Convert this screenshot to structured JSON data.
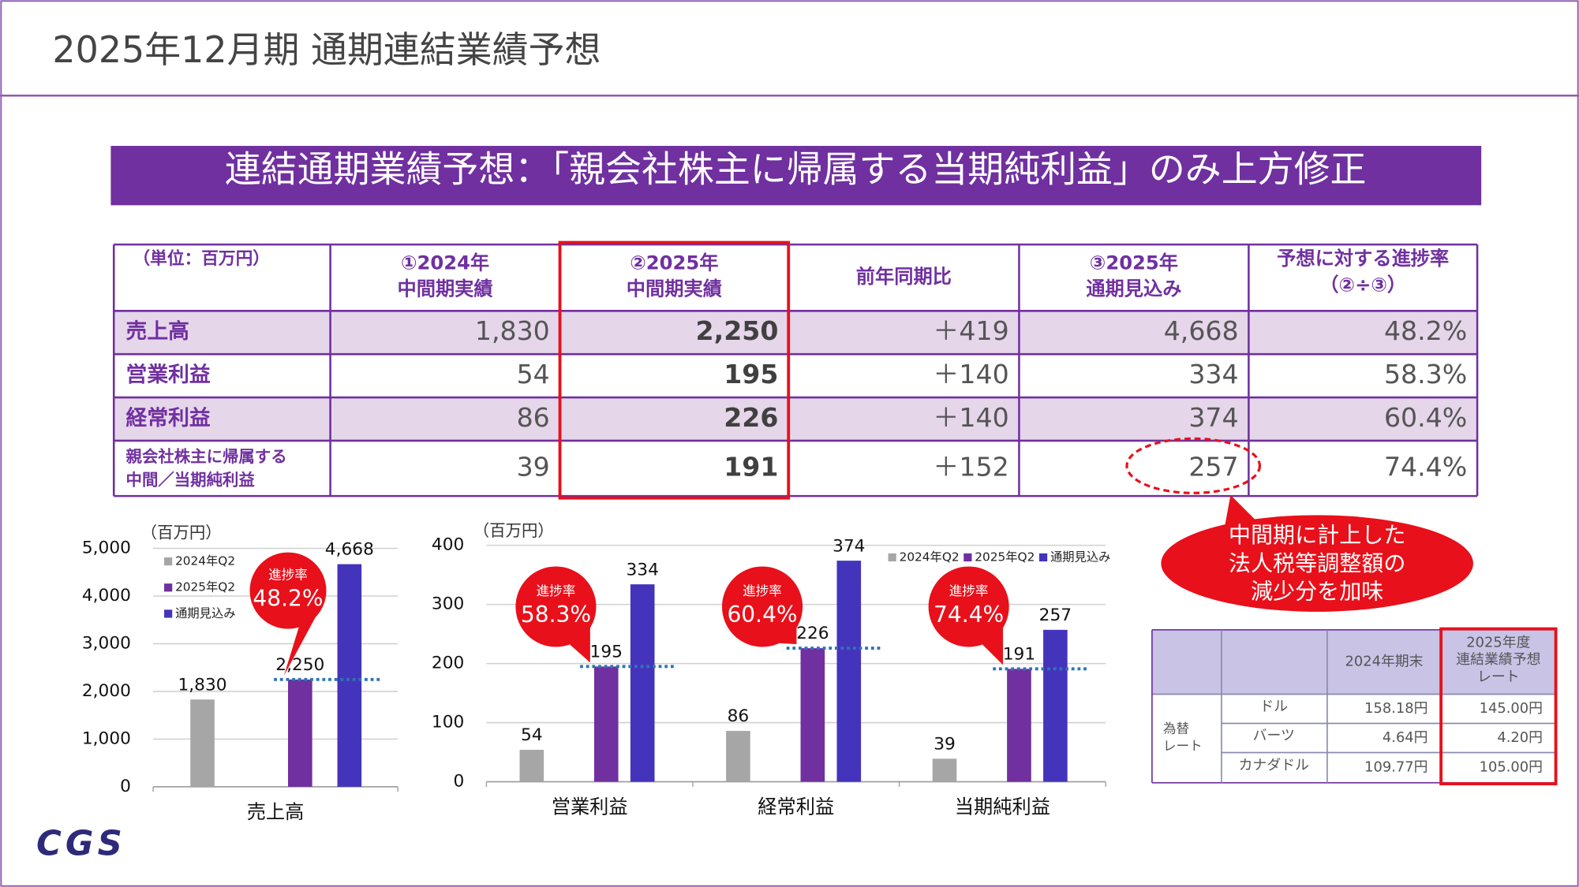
{
  "header": {
    "title": "2025年12月期 通期連結業績予想"
  },
  "banner": {
    "text": "連結通期業績予想：「親会社株主に帰属する当期純利益」のみ上方修正"
  },
  "table": {
    "header": [
      [
        "（単位：百万円）"
      ],
      [
        "①2024年",
        "中間期実績"
      ],
      [
        "②2025年",
        "中間期実績"
      ],
      [
        "前年同期比"
      ],
      [
        "③2025年",
        "通期見込み"
      ],
      [
        "予想に対する進捗率",
        "（②÷③）"
      ]
    ],
    "rows": [
      [
        [
          "売上高"
        ],
        "1,830",
        "2,250",
        "＋419",
        "4,668",
        "48.2%"
      ],
      [
        [
          "営業利益"
        ],
        "54",
        "195",
        "＋140",
        "334",
        "58.3%"
      ],
      [
        [
          "経常利益"
        ],
        "86",
        "226",
        "＋140",
        "374",
        "60.4%"
      ],
      [
        [
          "親会社株主に帰属する",
          "中間／当期純利益"
        ],
        "39",
        "191",
        "＋152",
        "257",
        "74.4%"
      ]
    ]
  },
  "callout": {
    "lines": [
      "中間期に計上した",
      "法人税等調整額の",
      "減少分を加味"
    ]
  },
  "chart_data": [
    {
      "type": "bar",
      "unit": "（百万円）",
      "categories": [
        "売上高"
      ],
      "series": [
        {
          "name": "2024年Q2",
          "color": "#a6a6a6",
          "values": [
            1830
          ],
          "value_labels": [
            "1,830"
          ]
        },
        {
          "name": "2025年Q2",
          "color": "#7030a0",
          "values": [
            2250
          ],
          "value_labels": [
            "2,250"
          ]
        },
        {
          "name": "通期見込み",
          "color": "#4433bb",
          "values": [
            4668
          ],
          "value_labels": [
            "4,668"
          ]
        }
      ],
      "ylim": [
        0,
        5000
      ],
      "yticks": [
        0,
        {
          "value": 1000,
          "label": "1,000"
        },
        {
          "value": 2000,
          "label": "2,000"
        },
        {
          "value": 3000,
          "label": "3,000"
        },
        {
          "value": 4000,
          "label": "4,000"
        },
        {
          "value": 5000,
          "label": "5,000"
        }
      ],
      "grid": true,
      "legend": "top-left",
      "annotations": [
        {
          "label": "進捗率",
          "value": "48.2%"
        }
      ]
    },
    {
      "type": "bar",
      "unit": "（百万円）",
      "categories": [
        "営業利益",
        "経常利益",
        "当期純利益"
      ],
      "series": [
        {
          "name": "2024年Q2",
          "color": "#a6a6a6",
          "values": [
            54,
            86,
            39
          ]
        },
        {
          "name": "2025年Q2",
          "color": "#7030a0",
          "values": [
            195,
            226,
            191
          ]
        },
        {
          "name": "通期見込み",
          "color": "#4433bb",
          "values": [
            334,
            374,
            257
          ]
        }
      ],
      "ylim": [
        0,
        400
      ],
      "yticks": [
        0,
        100,
        200,
        300,
        400
      ],
      "grid": true,
      "legend": "top-right",
      "annotations": [
        {
          "label": "進捗率",
          "value": "58.3%"
        },
        {
          "label": "進捗率",
          "value": "60.4%"
        },
        {
          "label": "進捗率",
          "value": "74.4%"
        }
      ]
    }
  ],
  "fx_table": {
    "columns": [
      [
        "2024年期末"
      ],
      [
        "2025年度",
        "連結業績予想",
        "レート"
      ]
    ],
    "group": [
      "為替",
      "レート"
    ],
    "rows": [
      [
        "ドル",
        "158.18円",
        "145.00円"
      ],
      [
        "バーツ",
        "4.64円",
        "4.20円"
      ],
      [
        "カナダドル",
        "109.77円",
        "105.00円"
      ]
    ]
  },
  "logo": "CGS"
}
